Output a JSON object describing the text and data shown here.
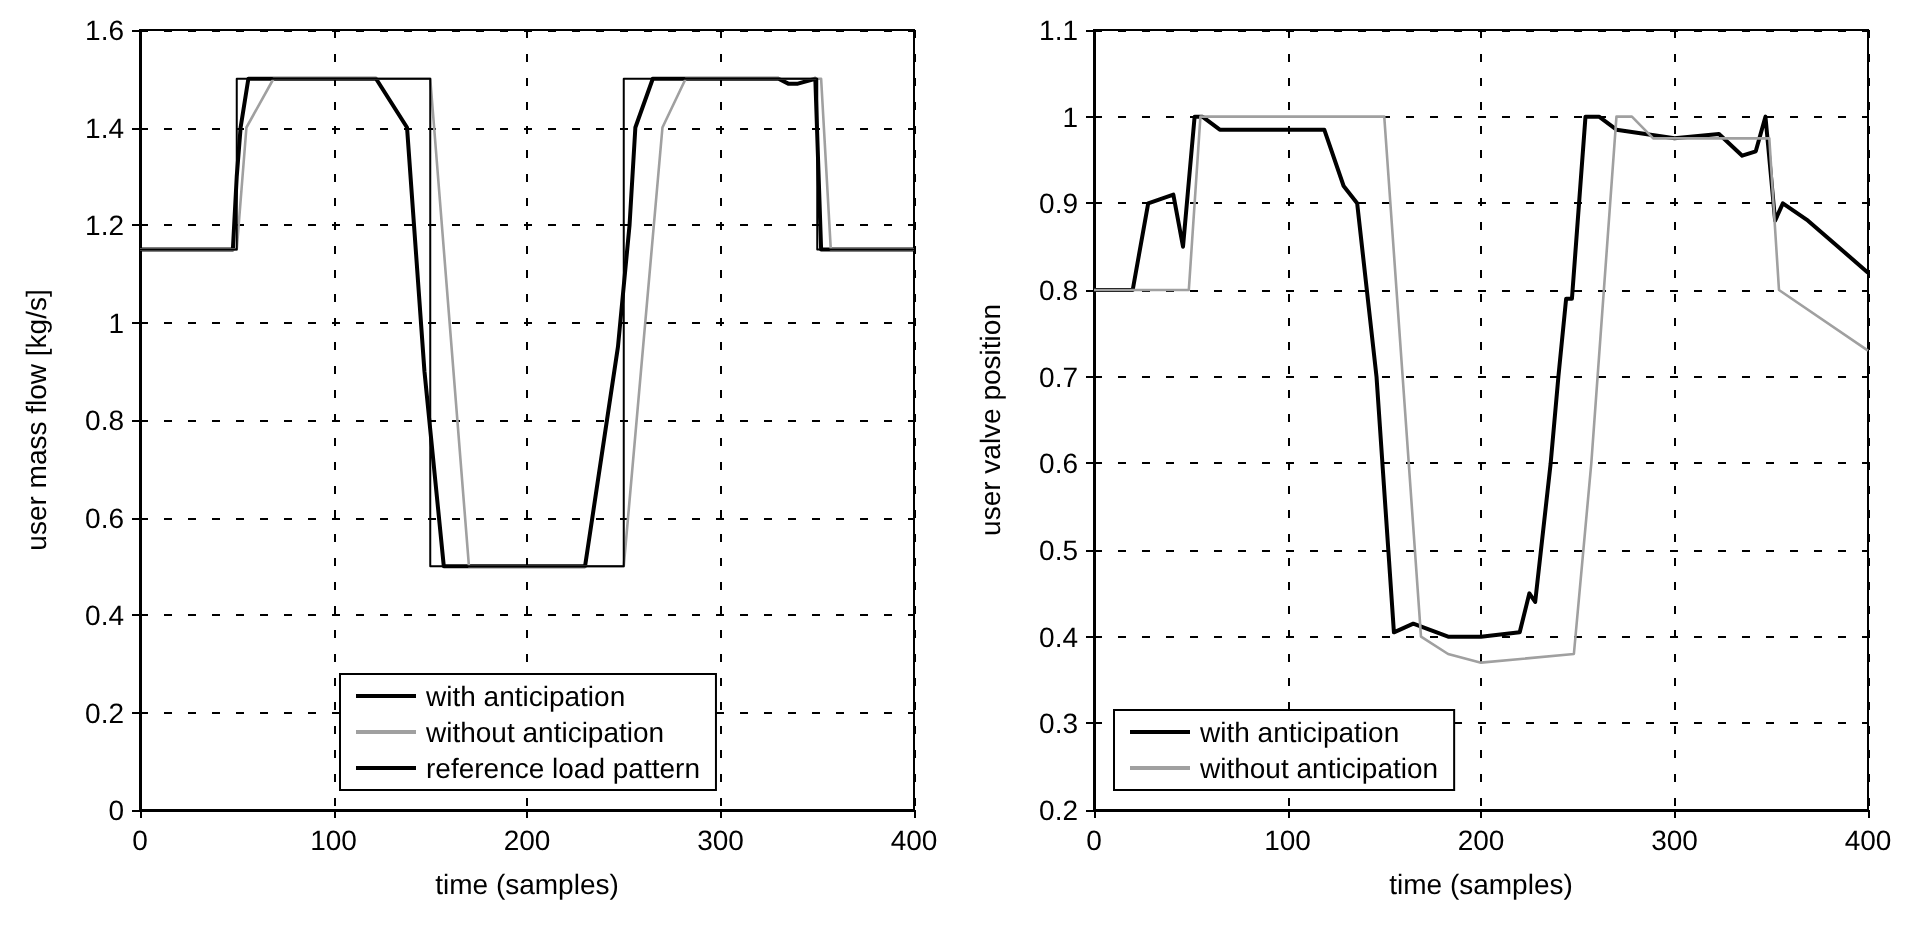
{
  "chart_data": [
    {
      "type": "line",
      "xlabel": "time (samples)",
      "ylabel": "user mass flow [kg/s]",
      "xlim": [
        0,
        400
      ],
      "xticks": [
        0,
        100,
        200,
        300,
        400
      ],
      "ylim": [
        0,
        1.6
      ],
      "yticks": [
        0,
        0.2,
        0.4,
        0.6,
        0.8,
        1,
        1.2,
        1.4,
        1.6
      ],
      "grid": true,
      "legend": "bottom",
      "marker": "none",
      "line_style": "solid",
      "series": [
        {
          "name": "with anticipation",
          "color": "#000000",
          "x": [
            0,
            48,
            50,
            52,
            56,
            122,
            138,
            147,
            157,
            230,
            247,
            253,
            256,
            265,
            330,
            335,
            340,
            349,
            352,
            400
          ],
          "values": [
            1.15,
            1.15,
            1.3,
            1.4,
            1.5,
            1.5,
            1.4,
            0.9,
            0.5,
            0.5,
            0.95,
            1.2,
            1.4,
            1.5,
            1.5,
            1.49,
            1.49,
            1.5,
            1.15,
            1.15
          ]
        },
        {
          "name": "without anticipation",
          "color": "#a0a0a0",
          "x": [
            0,
            50,
            55,
            69,
            150,
            170,
            250,
            270,
            282,
            352,
            357,
            400
          ],
          "values": [
            1.15,
            1.15,
            1.4,
            1.5,
            1.5,
            0.5,
            0.5,
            1.4,
            1.5,
            1.5,
            1.15,
            1.15
          ]
        },
        {
          "name": "reference load pattern",
          "color": "#000000",
          "x": [
            0,
            50,
            50,
            150,
            150,
            250,
            250,
            350,
            350,
            400
          ],
          "values": [
            1.15,
            1.15,
            1.5,
            1.5,
            0.5,
            0.5,
            1.5,
            1.5,
            1.15,
            1.15
          ]
        }
      ]
    },
    {
      "type": "line",
      "xlabel": "time (samples)",
      "ylabel": "user valve position",
      "xlim": [
        0,
        400
      ],
      "xticks": [
        0,
        100,
        200,
        300,
        400
      ],
      "ylim": [
        0.2,
        1.1
      ],
      "yticks": [
        0.2,
        0.3,
        0.4,
        0.5,
        0.6,
        0.7,
        0.8,
        0.9,
        1,
        1.1
      ],
      "grid": true,
      "legend": "bottom left",
      "marker": "none",
      "line_style": "solid",
      "series": [
        {
          "name": "with anticipation",
          "color": "#000000",
          "x": [
            0,
            20,
            28,
            41,
            46,
            52,
            56,
            65,
            119,
            129,
            136,
            146,
            155,
            165,
            183,
            200,
            220,
            225,
            228,
            236,
            240,
            244,
            247,
            254,
            261,
            270,
            300,
            323,
            335,
            342,
            347,
            352,
            356,
            369,
            400
          ],
          "values": [
            0.8,
            0.8,
            0.9,
            0.91,
            0.85,
            1,
            1,
            0.985,
            0.985,
            0.92,
            0.9,
            0.7,
            0.405,
            0.415,
            0.4,
            0.4,
            0.405,
            0.45,
            0.44,
            0.6,
            0.7,
            0.79,
            0.79,
            1,
            1,
            0.985,
            0.975,
            0.98,
            0.955,
            0.96,
            1,
            0.88,
            0.9,
            0.88,
            0.82
          ]
        },
        {
          "name": "without anticipation",
          "color": "#a0a0a0",
          "x": [
            0,
            49,
            55,
            150,
            169,
            183,
            200,
            248,
            257,
            270,
            278,
            289,
            349,
            354,
            400
          ],
          "values": [
            0.8,
            0.8,
            1,
            1,
            0.4,
            0.38,
            0.37,
            0.38,
            0.6,
            1,
            1,
            0.975,
            0.975,
            0.8,
            0.73
          ]
        }
      ]
    }
  ]
}
